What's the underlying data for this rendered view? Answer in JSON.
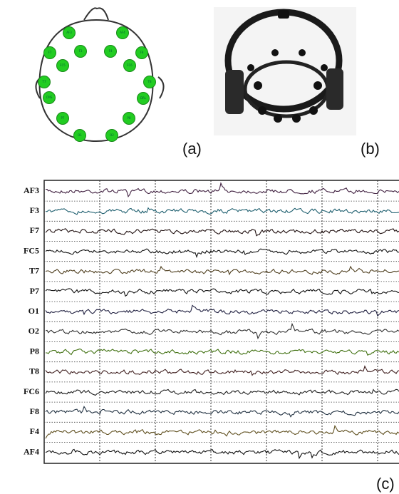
{
  "panels": {
    "a": {
      "label": "(a)",
      "electrodes": [
        {
          "label": "AF3"
        },
        {
          "label": "AF4"
        },
        {
          "label": "F7"
        },
        {
          "label": "F3"
        },
        {
          "label": "F4"
        },
        {
          "label": "F8"
        },
        {
          "label": "FC5"
        },
        {
          "label": "FC6"
        },
        {
          "label": "T7"
        },
        {
          "label": "T8"
        },
        {
          "label": "CMS"
        },
        {
          "label": "DRL"
        },
        {
          "label": "P7"
        },
        {
          "label": "P8"
        },
        {
          "label": "O1"
        },
        {
          "label": "O2"
        }
      ]
    },
    "b": {
      "label": "(b)"
    },
    "c": {
      "label": "(c)",
      "channels": [
        "AF3",
        "F3",
        "F7",
        "FC5",
        "T7",
        "P7",
        "O1",
        "O2",
        "P8",
        "T8",
        "FC6",
        "F8",
        "F4",
        "AF4"
      ]
    }
  }
}
